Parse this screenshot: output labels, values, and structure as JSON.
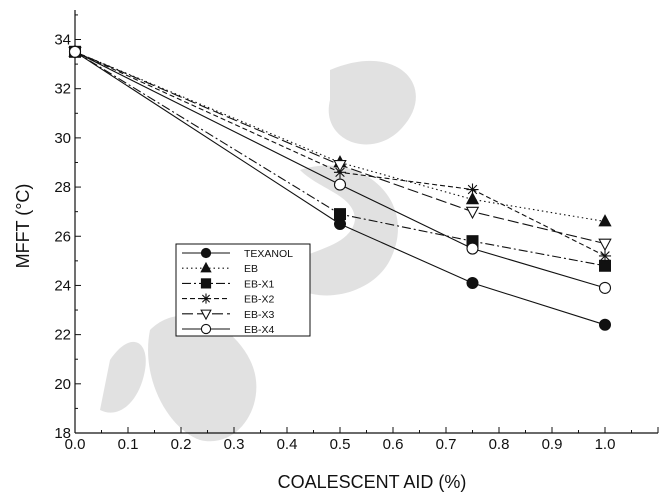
{
  "chart_data": {
    "type": "line",
    "xlabel": "COALESCENT AID (%)",
    "ylabel": "MFFT (°C)",
    "xlim": [
      0.0,
      1.1
    ],
    "ylim": [
      18,
      35.2
    ],
    "x_ticks": [
      "0.0",
      "0.1",
      "0.2",
      "0.3",
      "0.4",
      "0.5",
      "0.6",
      "0.7",
      "0.8",
      "0.9",
      "1.0"
    ],
    "y_ticks": [
      "18",
      "20",
      "22",
      "24",
      "26",
      "28",
      "30",
      "32",
      "34"
    ],
    "grid": false,
    "legend_position": "center-left",
    "series": [
      {
        "name": "TEXANOL",
        "marker": "filled-circle",
        "dash": "solid",
        "x": [
          0.0,
          0.5,
          0.75,
          1.0
        ],
        "y": [
          33.5,
          26.5,
          24.1,
          22.4
        ]
      },
      {
        "name": "EB",
        "marker": "filled-triangle",
        "dash": "dotted",
        "x": [
          0.0,
          0.5,
          0.75,
          1.0
        ],
        "y": [
          33.5,
          29.0,
          27.5,
          26.6
        ]
      },
      {
        "name": "EB-X1",
        "marker": "filled-square",
        "dash": "dash-dot",
        "x": [
          0.0,
          0.5,
          0.75,
          1.0
        ],
        "y": [
          33.5,
          26.9,
          25.8,
          24.8
        ]
      },
      {
        "name": "EB-X2",
        "marker": "asterisk",
        "dash": "dashed",
        "x": [
          0.0,
          0.5,
          0.75,
          1.0
        ],
        "y": [
          33.5,
          28.6,
          27.9,
          25.2
        ]
      },
      {
        "name": "EB-X3",
        "marker": "open-triangle",
        "dash": "long-dash",
        "x": [
          0.0,
          0.5,
          0.75,
          1.0
        ],
        "y": [
          33.5,
          28.9,
          27.0,
          25.7
        ]
      },
      {
        "name": "EB-X4",
        "marker": "open-circle",
        "dash": "solid",
        "x": [
          0.0,
          0.5,
          0.75,
          1.0
        ],
        "y": [
          33.5,
          28.1,
          25.5,
          23.9
        ]
      }
    ]
  }
}
